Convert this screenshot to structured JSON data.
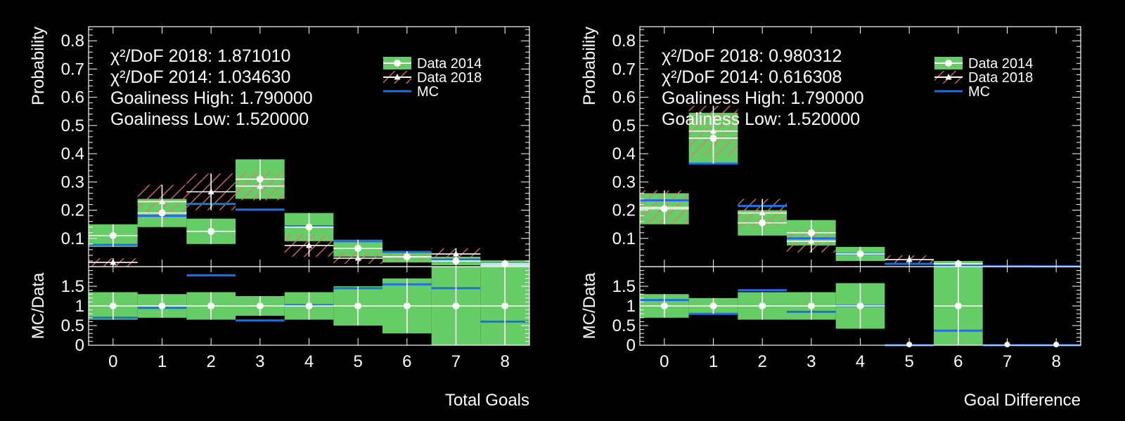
{
  "chart_data": [
    {
      "type": "bar",
      "ylabel": "Probability",
      "ratio_ylabel": "MC/Data",
      "xlabel": "Total Goals",
      "x": [
        0,
        1,
        2,
        3,
        4,
        5,
        6,
        7,
        8
      ],
      "x_tick_labels": [
        "0",
        "1",
        "2",
        "3",
        "4",
        "5",
        "6",
        "7",
        "8"
      ],
      "ylim": [
        0,
        0.85
      ],
      "y_tick_labels": [
        "0.1",
        "0.2",
        "0.3",
        "0.4",
        "0.5",
        "0.6",
        "0.7",
        "0.8"
      ],
      "ratio_ylim": [
        0,
        2.0
      ],
      "ratio_tick_labels": [
        "0",
        "0.5",
        "1",
        "1.5"
      ],
      "annotations": [
        "χ²/DoF 2018: 1.871010",
        "χ²/DoF 2014: 1.034630",
        "Goaliness High: 1.790000",
        "Goaliness Low: 1.520000"
      ],
      "legend": [
        "Data 2014",
        "Data 2018",
        "MC"
      ],
      "legend_position": "top-right",
      "series": [
        {
          "name": "Data 2014",
          "values": [
            0.11,
            0.19,
            0.125,
            0.31,
            0.14,
            0.065,
            0.035,
            0.02,
            0.01
          ],
          "err": [
            0.04,
            0.05,
            0.045,
            0.07,
            0.05,
            0.03,
            0.02,
            0.015,
            0.012
          ]
        },
        {
          "name": "Data 2018",
          "values": [
            0.015,
            0.23,
            0.265,
            0.285,
            0.075,
            0.03,
            0.035,
            0.045,
            0.005
          ],
          "err": [
            0.015,
            0.06,
            0.065,
            0.05,
            0.04,
            0.02,
            0.015,
            0.02,
            0.005
          ]
        },
        {
          "name": "MC",
          "values": [
            0.077,
            0.18,
            0.222,
            0.202,
            0.143,
            0.09,
            0.052,
            0.025,
            0.01
          ]
        }
      ],
      "ratio": {
        "mc": [
          0.7,
          0.95,
          1.78,
          0.63,
          1.02,
          1.45,
          1.55,
          1.45,
          0.6
        ],
        "band": [
          0.35,
          0.3,
          0.35,
          0.25,
          0.35,
          0.5,
          0.7,
          1.0,
          1.2
        ]
      }
    },
    {
      "type": "bar",
      "ylabel": "Probability",
      "ratio_ylabel": "MC/Data",
      "xlabel": "Goal Difference",
      "x": [
        0,
        1,
        2,
        3,
        4,
        5,
        6,
        7,
        8
      ],
      "x_tick_labels": [
        "0",
        "1",
        "2",
        "3",
        "4",
        "5",
        "6",
        "7",
        "8"
      ],
      "ylim": [
        0,
        0.85
      ],
      "y_tick_labels": [
        "0.1",
        "0.2",
        "0.3",
        "0.4",
        "0.5",
        "0.6",
        "0.7",
        "0.8"
      ],
      "ratio_ylim": [
        0,
        2.0
      ],
      "ratio_tick_labels": [
        "0",
        "0.5",
        "1",
        "1.5"
      ],
      "annotations": [
        "χ²/DoF 2018: 0.980312",
        "χ²/DoF 2014: 0.616308",
        "Goaliness High: 1.790000",
        "Goaliness Low: 1.520000"
      ],
      "legend": [
        "Data 2014",
        "Data 2018",
        "MC"
      ],
      "legend_position": "top-right",
      "series": [
        {
          "name": "Data 2014",
          "values": [
            0.205,
            0.455,
            0.155,
            0.12,
            0.045,
            0.0,
            0.01,
            0.0,
            0.0
          ],
          "err": [
            0.055,
            0.09,
            0.045,
            0.045,
            0.025,
            0.0,
            0.01,
            0.0,
            0.0
          ]
        },
        {
          "name": "Data 2018",
          "values": [
            0.21,
            0.48,
            0.19,
            0.09,
            0.0,
            0.025,
            0.0,
            0.0,
            0.0
          ],
          "err": [
            0.06,
            0.09,
            0.05,
            0.04,
            0.0,
            0.015,
            0.0,
            0.0,
            0.0
          ]
        },
        {
          "name": "MC",
          "values": [
            0.235,
            0.365,
            0.215,
            0.1,
            0.045,
            0.01,
            0.004,
            0.002,
            0.001
          ]
        }
      ],
      "ratio": {
        "mc": [
          1.15,
          0.8,
          1.4,
          0.85,
          1.0,
          0.0,
          0.37,
          0.0,
          0.0
        ],
        "band": [
          0.3,
          0.2,
          0.35,
          0.35,
          0.58,
          0.0,
          1.2,
          0.0,
          0.0
        ]
      }
    }
  ]
}
